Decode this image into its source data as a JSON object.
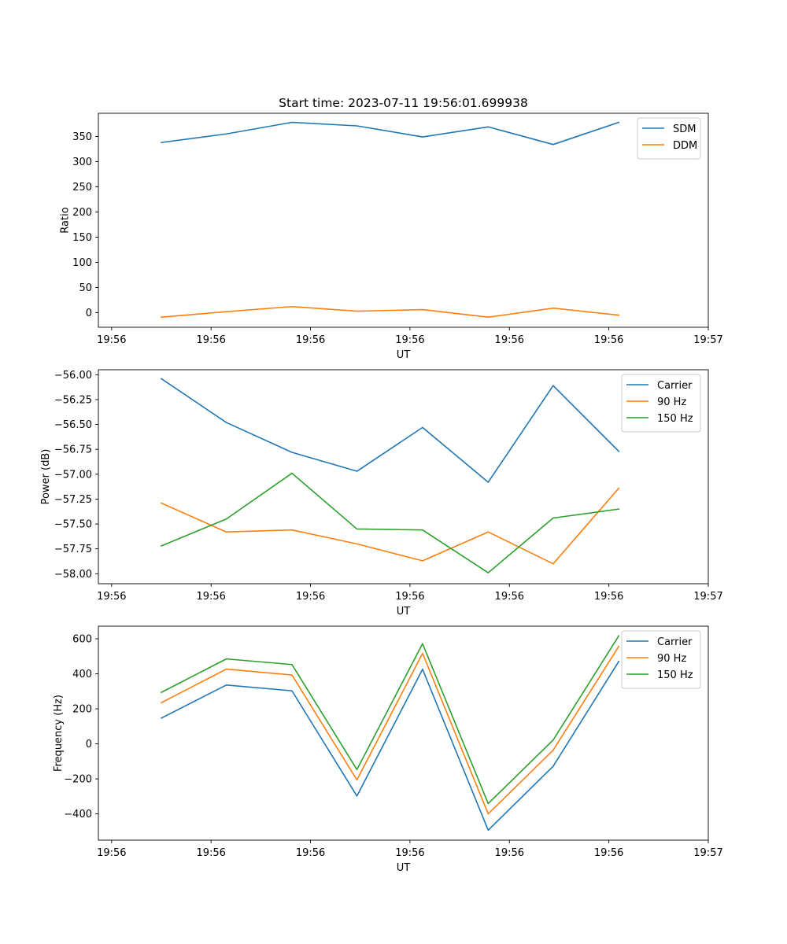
{
  "chart_data": [
    {
      "type": "line",
      "title": "Start time: 2023-07-11 19:56:01.699938",
      "xlabel": "UT",
      "ylabel": "Ratio",
      "xlim": [
        -0.2,
        9.0
      ],
      "ylim": [
        -29,
        396
      ],
      "xticks": [
        0,
        1.5,
        3,
        4.5,
        6,
        7.5,
        9
      ],
      "xticklabels": [
        "19:56",
        "19:56",
        "19:56",
        "19:56",
        "19:56",
        "19:56",
        "19:57"
      ],
      "yticks": [
        0,
        50,
        100,
        150,
        200,
        250,
        300,
        350
      ],
      "yticklabels": [
        "0",
        "50",
        "100",
        "150",
        "200",
        "250",
        "300",
        "350"
      ],
      "legend_position": "top-right",
      "x": [
        0.75,
        1.73,
        2.72,
        3.7,
        4.69,
        5.68,
        6.66,
        7.65
      ],
      "series": [
        {
          "name": "SDM",
          "color": "#1f77b4",
          "values": [
            338,
            355,
            378,
            371,
            349,
            369,
            334,
            378
          ]
        },
        {
          "name": "DDM",
          "color": "#ff7f0e",
          "values": [
            -9,
            2,
            12,
            3,
            6,
            -9,
            9,
            -5
          ]
        }
      ]
    },
    {
      "type": "line",
      "title": "",
      "xlabel": "UT",
      "ylabel": "Power (dB)",
      "xlim": [
        -0.2,
        9.0
      ],
      "ylim": [
        -58.1,
        -55.95
      ],
      "xticks": [
        0,
        1.5,
        3,
        4.5,
        6,
        7.5,
        9
      ],
      "xticklabels": [
        "19:56",
        "19:56",
        "19:56",
        "19:56",
        "19:56",
        "19:56",
        "19:57"
      ],
      "yticks": [
        -58.0,
        -57.75,
        -57.5,
        -57.25,
        -57.0,
        -56.75,
        -56.5,
        -56.25,
        -56.0
      ],
      "yticklabels": [
        "−58.00",
        "−57.75",
        "−57.50",
        "−57.25",
        "−57.00",
        "−56.75",
        "−56.50",
        "−56.25",
        "−56.00"
      ],
      "legend_position": "top-right",
      "x": [
        0.75,
        1.73,
        2.72,
        3.7,
        4.69,
        5.68,
        6.66,
        7.65
      ],
      "series": [
        {
          "name": "Carrier",
          "color": "#1f77b4",
          "values": [
            -56.04,
            -56.48,
            -56.78,
            -56.97,
            -56.53,
            -57.08,
            -56.11,
            -56.77
          ]
        },
        {
          "name": "90 Hz",
          "color": "#ff7f0e",
          "values": [
            -57.29,
            -57.58,
            -57.56,
            -57.7,
            -57.87,
            -57.58,
            -57.9,
            -57.14
          ]
        },
        {
          "name": "150 Hz",
          "color": "#2ca02c",
          "values": [
            -57.72,
            -57.45,
            -56.99,
            -57.55,
            -57.56,
            -57.99,
            -57.44,
            -57.35
          ]
        }
      ]
    },
    {
      "type": "line",
      "title": "",
      "xlabel": "UT",
      "ylabel": "Frequency (Hz)",
      "xlim": [
        -0.2,
        9.0
      ],
      "ylim": [
        -550,
        672
      ],
      "xticks": [
        0,
        1.5,
        3,
        4.5,
        6,
        7.5,
        9
      ],
      "xticklabels": [
        "19:56",
        "19:56",
        "19:56",
        "19:56",
        "19:56",
        "19:56",
        "19:57"
      ],
      "yticks": [
        -400,
        -200,
        0,
        200,
        400,
        600
      ],
      "yticklabels": [
        "−400",
        "−200",
        "0",
        "200",
        "400",
        "600"
      ],
      "legend_position": "top-right",
      "x": [
        0.75,
        1.73,
        2.72,
        3.7,
        4.69,
        5.68,
        6.66,
        7.65
      ],
      "series": [
        {
          "name": "Carrier",
          "color": "#1f77b4",
          "values": [
            147,
            336,
            303,
            -298,
            426,
            -493,
            -128,
            471
          ]
        },
        {
          "name": "90 Hz",
          "color": "#ff7f0e",
          "values": [
            235,
            427,
            393,
            -206,
            517,
            -400,
            -36,
            557
          ]
        },
        {
          "name": "150 Hz",
          "color": "#2ca02c",
          "values": [
            294,
            485,
            453,
            -147,
            572,
            -341,
            22,
            617
          ]
        }
      ]
    }
  ]
}
